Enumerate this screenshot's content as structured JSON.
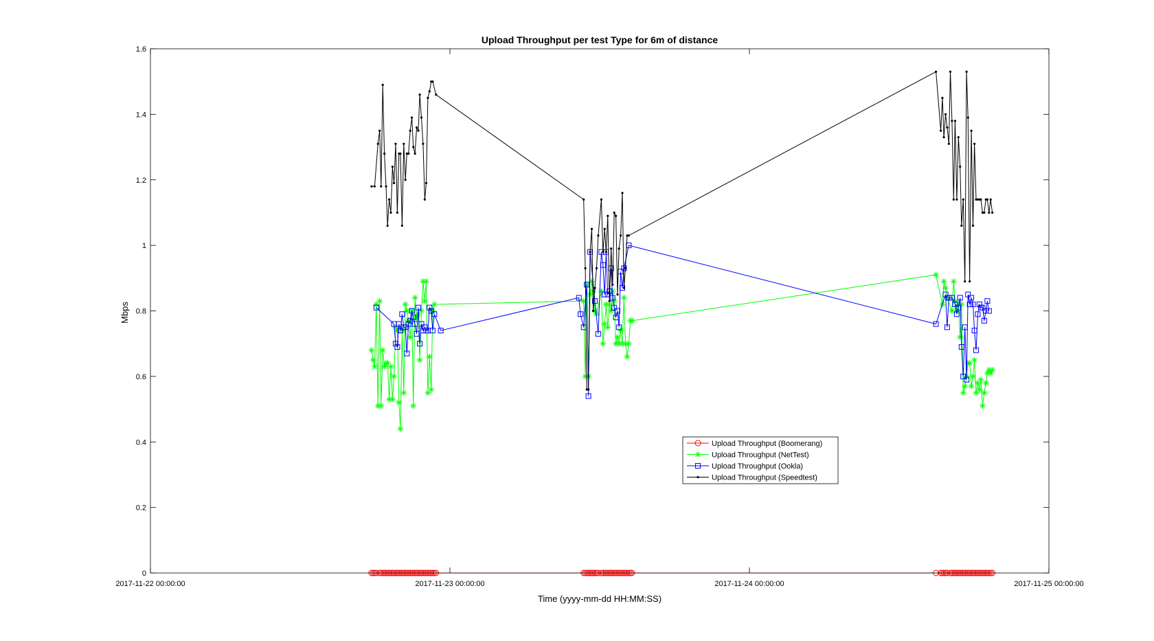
{
  "chart_data": {
    "type": "line",
    "title": "Upload Throughput per test Type for 6m of distance",
    "xlabel": "Time (yyyy-mm-dd HH:MM:SS)",
    "ylabel": "Mbps",
    "xlim": [
      "2017-11-22 00:00:00",
      "2017-11-25 00:00:00"
    ],
    "ylim": [
      0,
      1.6
    ],
    "xticks": [
      "2017-11-22 00:00:00",
      "2017-11-23 00:00:00",
      "2017-11-24 00:00:00",
      "2017-11-25 00:00:00"
    ],
    "yticks": [
      0,
      0.2,
      0.4,
      0.6,
      0.8,
      1,
      1.2,
      1.4,
      1.6
    ],
    "grid": false,
    "legend_position": "lower-center",
    "series": [
      {
        "name": "Upload Throughput (Boomerang)",
        "color": "#ff0000",
        "marker": "circle",
        "x": [
          "2017-11-22 17:43",
          "2017-11-22 17:51",
          "2017-11-22 17:58",
          "2017-11-22 18:06",
          "2017-11-22 18:22",
          "2017-11-22 18:29",
          "2017-11-22 18:37",
          "2017-11-22 18:45",
          "2017-11-22 18:53",
          "2017-11-22 19:00",
          "2017-11-22 19:08",
          "2017-11-22 19:16",
          "2017-11-22 19:24",
          "2017-11-22 19:31",
          "2017-11-22 19:39",
          "2017-11-22 19:47",
          "2017-11-22 19:55",
          "2017-11-22 20:02",
          "2017-11-22 20:10",
          "2017-11-22 20:18",
          "2017-11-22 20:26",
          "2017-11-22 20:33",
          "2017-11-22 20:41",
          "2017-11-22 20:49",
          "2017-11-22 20:57",
          "2017-11-22 21:04",
          "2017-11-22 21:12",
          "2017-11-22 21:20",
          "2017-11-22 21:28",
          "2017-11-22 21:35",
          "2017-11-22 21:43",
          "2017-11-22 21:51",
          "2017-11-22 21:59",
          "2017-11-22 22:06",
          "2017-11-22 22:14",
          "2017-11-22 22:22",
          "2017-11-22 22:30",
          "2017-11-22 22:37",
          "2017-11-22 22:45",
          "2017-11-22 22:53",
          "2017-11-23 10:43",
          "2017-11-23 10:51",
          "2017-11-23 10:58",
          "2017-11-23 11:06",
          "2017-11-23 11:14",
          "2017-11-23 11:22",
          "2017-11-23 11:29",
          "2017-11-23 11:37",
          "2017-11-23 11:45",
          "2017-11-23 11:53",
          "2017-11-23 12:08",
          "2017-11-23 12:16",
          "2017-11-23 12:24",
          "2017-11-23 12:31",
          "2017-11-23 12:39",
          "2017-11-23 12:47",
          "2017-11-23 12:55",
          "2017-11-23 13:02",
          "2017-11-23 13:10",
          "2017-11-23 13:18",
          "2017-11-23 13:26",
          "2017-11-23 13:33",
          "2017-11-23 13:41",
          "2017-11-23 13:49",
          "2017-11-23 13:57",
          "2017-11-23 14:04",
          "2017-11-23 14:12",
          "2017-11-23 14:20",
          "2017-11-23 14:28",
          "2017-11-23 14:35",
          "2017-11-24 14:57",
          "2017-11-24 15:20",
          "2017-11-24 15:28",
          "2017-11-24 15:35",
          "2017-11-24 15:43",
          "2017-11-24 15:51",
          "2017-11-24 16:06",
          "2017-11-24 16:14",
          "2017-11-24 16:22",
          "2017-11-24 16:29",
          "2017-11-24 16:37",
          "2017-11-24 16:45",
          "2017-11-24 16:53",
          "2017-11-24 17:00",
          "2017-11-24 17:08",
          "2017-11-24 17:16",
          "2017-11-24 17:24",
          "2017-11-24 17:31",
          "2017-11-24 17:39",
          "2017-11-24 17:47",
          "2017-11-24 17:55",
          "2017-11-24 18:02",
          "2017-11-24 18:10",
          "2017-11-24 18:18",
          "2017-11-24 18:26",
          "2017-11-24 18:33",
          "2017-11-24 18:41",
          "2017-11-24 18:49",
          "2017-11-24 18:57",
          "2017-11-24 19:04",
          "2017-11-24 19:12",
          "2017-11-24 19:20",
          "2017-11-24 19:28"
        ],
        "values": [
          0,
          0,
          0,
          0,
          0,
          0,
          0,
          0,
          0,
          0,
          0,
          0,
          0,
          0,
          0,
          0,
          0,
          0,
          0,
          0,
          0,
          0,
          0,
          0,
          0,
          0,
          0,
          0,
          0,
          0,
          0,
          0,
          0,
          0,
          0,
          0,
          0,
          0,
          0,
          0,
          0,
          0,
          0,
          0,
          0,
          0,
          0,
          0,
          0,
          0,
          0,
          0,
          0,
          0,
          0,
          0,
          0,
          0,
          0,
          0,
          0,
          0,
          0,
          0,
          0,
          0,
          0,
          0,
          0,
          0,
          0,
          0,
          0,
          0,
          0,
          0,
          0,
          0,
          0,
          0,
          0,
          0,
          0,
          0,
          0,
          0,
          0,
          0,
          0,
          0,
          0,
          0,
          0,
          0,
          0,
          0,
          0,
          0,
          0,
          0,
          0,
          0,
          0
        ]
      },
      {
        "name": "Upload Throughput (NetTest)",
        "color": "#00ff00",
        "marker": "asterisk",
        "x": [
          "2017-11-22 17:43",
          "2017-11-22 17:51",
          "2017-11-22 17:58",
          "2017-11-22 18:06",
          "2017-11-22 18:14",
          "2017-11-22 18:22",
          "2017-11-22 18:29",
          "2017-11-22 18:37",
          "2017-11-22 18:45",
          "2017-11-22 18:53",
          "2017-11-22 19:00",
          "2017-11-22 19:08",
          "2017-11-22 19:16",
          "2017-11-22 19:24",
          "2017-11-22 19:31",
          "2017-11-22 19:39",
          "2017-11-22 19:47",
          "2017-11-22 19:55",
          "2017-11-22 20:02",
          "2017-11-22 20:10",
          "2017-11-22 20:18",
          "2017-11-22 20:26",
          "2017-11-22 20:33",
          "2017-11-22 20:41",
          "2017-11-22 20:49",
          "2017-11-22 20:57",
          "2017-11-22 21:04",
          "2017-11-22 21:12",
          "2017-11-22 21:20",
          "2017-11-22 21:28",
          "2017-11-22 21:35",
          "2017-11-22 21:43",
          "2017-11-22 21:51",
          "2017-11-22 21:59",
          "2017-11-22 22:06",
          "2017-11-22 22:14",
          "2017-11-22 22:22",
          "2017-11-22 22:30",
          "2017-11-22 22:37",
          "2017-11-22 22:45",
          "2017-11-23 10:43",
          "2017-11-23 10:51",
          "2017-11-23 10:58",
          "2017-11-23 11:06",
          "2017-11-23 11:14",
          "2017-11-23 11:22",
          "2017-11-23 11:29",
          "2017-11-23 11:37",
          "2017-11-23 11:45",
          "2017-11-23 12:08",
          "2017-11-23 12:16",
          "2017-11-23 12:24",
          "2017-11-23 12:31",
          "2017-11-23 12:39",
          "2017-11-23 12:47",
          "2017-11-23 12:55",
          "2017-11-23 13:02",
          "2017-11-23 13:10",
          "2017-11-23 13:18",
          "2017-11-23 13:26",
          "2017-11-23 13:33",
          "2017-11-23 13:41",
          "2017-11-23 13:49",
          "2017-11-23 13:57",
          "2017-11-23 14:04",
          "2017-11-23 14:12",
          "2017-11-23 14:20",
          "2017-11-23 14:28",
          "2017-11-23 14:35",
          "2017-11-24 14:57",
          "2017-11-24 15:28",
          "2017-11-24 15:35",
          "2017-11-24 15:43",
          "2017-11-24 15:51",
          "2017-11-24 16:14",
          "2017-11-24 16:22",
          "2017-11-24 16:29",
          "2017-11-24 16:37",
          "2017-11-24 16:45",
          "2017-11-24 16:53",
          "2017-11-24 17:00",
          "2017-11-24 17:08",
          "2017-11-24 17:16",
          "2017-11-24 17:24",
          "2017-11-24 17:31",
          "2017-11-24 17:39",
          "2017-11-24 17:47",
          "2017-11-24 17:55",
          "2017-11-24 18:02",
          "2017-11-24 18:10",
          "2017-11-24 18:18",
          "2017-11-24 18:26",
          "2017-11-24 18:33",
          "2017-11-24 18:41",
          "2017-11-24 18:49",
          "2017-11-24 18:57",
          "2017-11-24 19:04",
          "2017-11-24 19:12",
          "2017-11-24 19:20",
          "2017-11-24 19:28"
        ],
        "values": [
          0.68,
          0.65,
          0.63,
          0.82,
          0.51,
          0.83,
          0.51,
          0.68,
          0.63,
          0.64,
          0.64,
          0.53,
          0.63,
          0.53,
          0.6,
          0.75,
          0.74,
          0.52,
          0.44,
          0.74,
          0.55,
          0.82,
          0.8,
          0.77,
          0.72,
          0.8,
          0.51,
          0.84,
          0.78,
          0.79,
          0.65,
          0.8,
          0.89,
          0.83,
          0.89,
          0.55,
          0.66,
          0.56,
          0.8,
          0.82,
          0.83,
          0.6,
          0.88,
          0.6,
          0.85,
          0.89,
          0.86,
          0.8,
          0.79,
          0.86,
          0.7,
          0.76,
          0.82,
          0.75,
          0.82,
          0.8,
          0.86,
          0.83,
          0.7,
          0.72,
          0.7,
          0.74,
          0.7,
          0.84,
          0.7,
          0.66,
          0.7,
          0.77,
          0.77,
          0.91,
          0.82,
          0.89,
          0.87,
          0.84,
          0.8,
          0.89,
          0.83,
          0.8,
          0.82,
          0.72,
          0.82,
          0.55,
          0.57,
          0.6,
          0.64,
          0.64,
          0.57,
          0.6,
          0.65,
          0.55,
          0.58,
          0.56,
          0.59,
          0.51,
          0.55,
          0.58,
          0.61,
          0.62,
          0.61,
          0.62
        ]
      },
      {
        "name": "Upload Throughput (Ookla)",
        "color": "#0000ff",
        "marker": "square",
        "x": [
          "2017-11-22 18:06",
          "2017-11-22 19:31",
          "2017-11-22 19:39",
          "2017-11-22 19:47",
          "2017-11-22 19:55",
          "2017-11-22 20:02",
          "2017-11-22 20:10",
          "2017-11-22 20:18",
          "2017-11-22 20:26",
          "2017-11-22 20:33",
          "2017-11-22 20:41",
          "2017-11-22 20:49",
          "2017-11-22 20:57",
          "2017-11-22 21:04",
          "2017-11-22 21:12",
          "2017-11-22 21:20",
          "2017-11-22 21:28",
          "2017-11-22 21:35",
          "2017-11-22 21:43",
          "2017-11-22 21:51",
          "2017-11-22 21:59",
          "2017-11-22 22:06",
          "2017-11-22 22:14",
          "2017-11-22 22:22",
          "2017-11-22 22:30",
          "2017-11-22 22:37",
          "2017-11-22 22:45",
          "2017-11-22 23:16",
          "2017-11-23 10:20",
          "2017-11-23 10:28",
          "2017-11-23 10:43",
          "2017-11-23 10:58",
          "2017-11-23 11:06",
          "2017-11-23 11:14",
          "2017-11-23 11:37",
          "2017-11-23 11:53",
          "2017-11-23 12:08",
          "2017-11-23 12:16",
          "2017-11-23 12:24",
          "2017-11-23 12:31",
          "2017-11-23 12:39",
          "2017-11-23 12:47",
          "2017-11-23 12:55",
          "2017-11-23 13:02",
          "2017-11-23 13:10",
          "2017-11-23 13:18",
          "2017-11-23 13:26",
          "2017-11-23 13:33",
          "2017-11-23 13:41",
          "2017-11-23 13:49",
          "2017-11-23 13:57",
          "2017-11-23 14:20",
          "2017-11-24 14:57",
          "2017-11-24 15:43",
          "2017-11-24 15:51",
          "2017-11-24 15:59",
          "2017-11-24 16:14",
          "2017-11-24 16:29",
          "2017-11-24 16:37",
          "2017-11-24 16:45",
          "2017-11-24 16:53",
          "2017-11-24 17:00",
          "2017-11-24 17:08",
          "2017-11-24 17:16",
          "2017-11-24 17:24",
          "2017-11-24 17:31",
          "2017-11-24 17:39",
          "2017-11-24 17:47",
          "2017-11-24 17:55",
          "2017-11-24 18:02",
          "2017-11-24 18:10",
          "2017-11-24 18:18",
          "2017-11-24 18:26",
          "2017-11-24 18:33",
          "2017-11-24 18:41",
          "2017-11-24 18:49",
          "2017-11-24 18:57",
          "2017-11-24 19:04",
          "2017-11-24 19:12"
        ],
        "values": [
          0.81,
          0.76,
          0.7,
          0.69,
          0.76,
          0.74,
          0.79,
          0.75,
          0.75,
          0.67,
          0.76,
          0.77,
          0.8,
          0.78,
          0.76,
          0.73,
          0.81,
          0.7,
          0.76,
          0.74,
          0.75,
          0.74,
          0.74,
          0.81,
          0.8,
          0.74,
          0.79,
          0.74,
          0.84,
          0.79,
          0.75,
          0.88,
          0.54,
          0.98,
          0.83,
          0.73,
          0.98,
          0.94,
          0.85,
          0.98,
          0.85,
          0.86,
          0.93,
          0.84,
          0.81,
          0.78,
          0.8,
          0.75,
          0.92,
          0.87,
          0.93,
          1.0,
          0.76,
          0.85,
          0.75,
          0.84,
          0.84,
          0.82,
          0.79,
          0.81,
          0.84,
          0.69,
          0.6,
          0.75,
          0.59,
          0.85,
          0.82,
          0.84,
          0.82,
          0.74,
          0.68,
          0.79,
          0.82,
          0.81,
          0.81,
          0.77,
          0.8,
          0.83,
          0.8
        ]
      },
      {
        "name": "Upload Throughput (Speedtest)",
        "color": "#000000",
        "marker": "point",
        "x": [
          "2017-11-22 17:43",
          "2017-11-22 17:58",
          "2017-11-22 18:14",
          "2017-11-22 18:22",
          "2017-11-22 18:29",
          "2017-11-22 18:37",
          "2017-11-22 18:45",
          "2017-11-22 18:53",
          "2017-11-22 19:00",
          "2017-11-22 19:08",
          "2017-11-22 19:16",
          "2017-11-22 19:24",
          "2017-11-22 19:31",
          "2017-11-22 19:39",
          "2017-11-22 19:47",
          "2017-11-22 19:55",
          "2017-11-22 20:02",
          "2017-11-22 20:10",
          "2017-11-22 20:18",
          "2017-11-22 20:26",
          "2017-11-22 20:33",
          "2017-11-22 20:41",
          "2017-11-22 20:49",
          "2017-11-22 20:57",
          "2017-11-22 21:04",
          "2017-11-22 21:12",
          "2017-11-22 21:20",
          "2017-11-22 21:28",
          "2017-11-22 21:35",
          "2017-11-22 21:43",
          "2017-11-22 21:51",
          "2017-11-22 21:59",
          "2017-11-22 22:06",
          "2017-11-22 22:14",
          "2017-11-22 22:22",
          "2017-11-22 22:30",
          "2017-11-22 22:37",
          "2017-11-22 22:53",
          "2017-11-23 10:43",
          "2017-11-23 10:51",
          "2017-11-23 10:58",
          "2017-11-23 11:06",
          "2017-11-23 11:14",
          "2017-11-23 11:22",
          "2017-11-23 11:29",
          "2017-11-23 11:37",
          "2017-11-23 11:45",
          "2017-11-23 11:53",
          "2017-11-23 12:08",
          "2017-11-23 12:16",
          "2017-11-23 12:24",
          "2017-11-23 12:31",
          "2017-11-23 12:39",
          "2017-11-23 12:47",
          "2017-11-23 12:55",
          "2017-11-23 13:02",
          "2017-11-23 13:10",
          "2017-11-23 13:18",
          "2017-11-23 13:26",
          "2017-11-23 13:33",
          "2017-11-23 13:41",
          "2017-11-23 13:49",
          "2017-11-23 13:57",
          "2017-11-23 14:04",
          "2017-11-23 14:12",
          "2017-11-23 14:20",
          "2017-11-24 14:57",
          "2017-11-24 15:20",
          "2017-11-24 15:28",
          "2017-11-24 15:35",
          "2017-11-24 15:43",
          "2017-11-24 15:51",
          "2017-11-24 15:59",
          "2017-11-24 16:06",
          "2017-11-24 16:14",
          "2017-11-24 16:22",
          "2017-11-24 16:29",
          "2017-11-24 16:37",
          "2017-11-24 16:45",
          "2017-11-24 16:53",
          "2017-11-24 17:00",
          "2017-11-24 17:08",
          "2017-11-24 17:16",
          "2017-11-24 17:24",
          "2017-11-24 17:31",
          "2017-11-24 17:39",
          "2017-11-24 17:47",
          "2017-11-24 17:55",
          "2017-11-24 18:02",
          "2017-11-24 18:10",
          "2017-11-24 18:18",
          "2017-11-24 18:26",
          "2017-11-24 18:33",
          "2017-11-24 18:41",
          "2017-11-24 18:49",
          "2017-11-24 18:57",
          "2017-11-24 19:04",
          "2017-11-24 19:12",
          "2017-11-24 19:20",
          "2017-11-24 19:28"
        ],
        "values": [
          1.18,
          1.18,
          1.31,
          1.35,
          1.18,
          1.49,
          1.28,
          1.18,
          1.06,
          1.14,
          1.1,
          1.24,
          1.19,
          1.31,
          1.1,
          1.28,
          1.28,
          1.06,
          1.31,
          1.2,
          1.28,
          1.28,
          1.35,
          1.39,
          1.3,
          1.28,
          1.36,
          1.35,
          1.46,
          1.39,
          1.31,
          1.14,
          1.19,
          1.45,
          1.47,
          1.5,
          1.5,
          1.46,
          1.14,
          0.93,
          0.56,
          0.56,
          0.98,
          1.05,
          0.8,
          0.87,
          0.93,
          1.03,
          1.14,
          0.98,
          1.05,
          0.98,
          1.09,
          0.83,
          0.99,
          0.88,
          1.1,
          1.09,
          0.85,
          0.99,
          1.03,
          1.16,
          0.87,
          0.93,
          1.03,
          1.03,
          1.53,
          1.35,
          1.45,
          1.33,
          1.4,
          1.36,
          1.31,
          1.53,
          1.38,
          1.14,
          1.38,
          1.14,
          1.33,
          1.24,
          1.06,
          1.14,
          0.89,
          1.53,
          1.39,
          0.89,
          1.35,
          1.06,
          1.31,
          1.14,
          1.14,
          1.14,
          1.14,
          1.1,
          1.1,
          1.14,
          1.14,
          1.1,
          1.14,
          1.1
        ]
      }
    ]
  }
}
